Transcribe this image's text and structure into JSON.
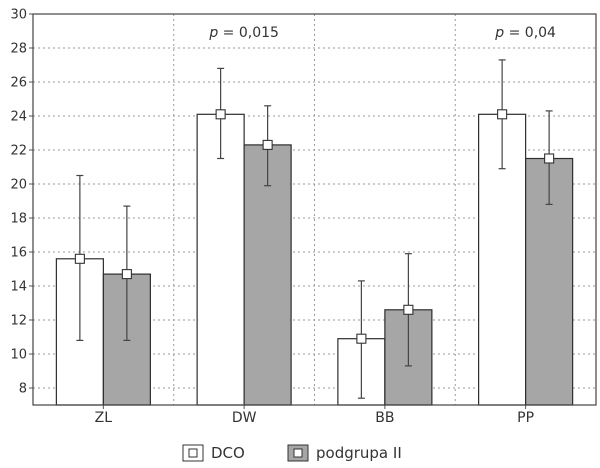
{
  "chart_data": {
    "type": "bar",
    "categories": [
      "ZL",
      "DW",
      "BB",
      "PP"
    ],
    "series": [
      {
        "name": "DCO",
        "values": [
          15.6,
          24.1,
          10.9,
          24.1
        ],
        "err_low": [
          10.8,
          21.5,
          7.4,
          20.9
        ],
        "err_high": [
          20.5,
          26.8,
          14.3,
          27.3
        ],
        "color": "#ffffff"
      },
      {
        "name": "podgrupa II",
        "values": [
          14.7,
          22.3,
          12.6,
          21.5
        ],
        "err_low": [
          10.8,
          19.9,
          9.3,
          18.8
        ],
        "err_high": [
          18.7,
          24.6,
          15.9,
          24.3
        ],
        "color": "#a6a6a6"
      }
    ],
    "y_ticks": [
      "8",
      "10",
      "12",
      "14",
      "16",
      "18",
      "20",
      "22",
      "24",
      "26",
      "28",
      "30"
    ],
    "ylim": [
      7,
      30
    ],
    "grid": true,
    "legend_position": "bottom",
    "annotations": [
      {
        "prefix": "p",
        "text": " = 0,015",
        "category": "DW"
      },
      {
        "prefix": "p",
        "text": " = 0,04",
        "category": "PP"
      }
    ],
    "title": "",
    "xlabel": "",
    "ylabel": ""
  }
}
